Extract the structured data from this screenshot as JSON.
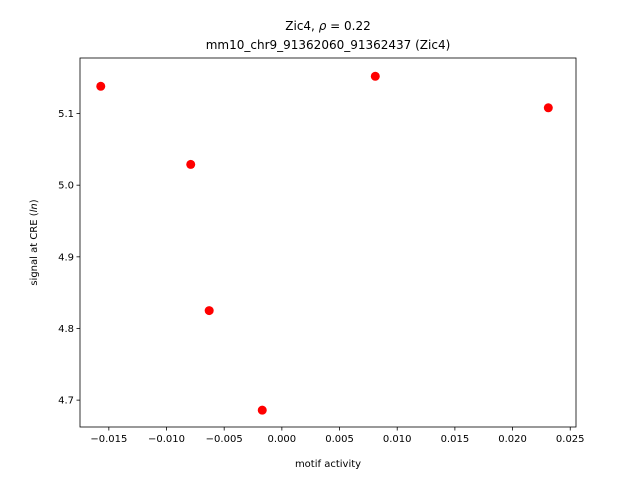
{
  "chart_data": {
    "type": "scatter",
    "title": "Zic4, ρ = 0.22",
    "subtitle": "mm10_chr9_91362060_91362437 (Zic4)",
    "xlabel": "motif activity",
    "ylabel": "signal at CRE (ln)",
    "xlim": [
      -0.0175,
      0.0255
    ],
    "ylim": [
      4.6625,
      5.1775
    ],
    "xticks": [
      -0.015,
      -0.01,
      -0.005,
      0.0,
      0.005,
      0.01,
      0.015,
      0.02,
      0.025
    ],
    "xtick_labels": [
      "−0.015",
      "−0.010",
      "−0.005",
      "0.000",
      "0.005",
      "0.010",
      "0.015",
      "0.020",
      "0.025"
    ],
    "yticks": [
      4.7,
      4.8,
      4.9,
      5.0,
      5.1
    ],
    "ytick_labels": [
      "4.7",
      "4.8",
      "4.9",
      "5.0",
      "5.1"
    ],
    "grid": false,
    "marker_color": "#ff0000",
    "points": [
      {
        "x": -0.0157,
        "y": 5.138
      },
      {
        "x": -0.0079,
        "y": 5.029
      },
      {
        "x": -0.0063,
        "y": 4.825
      },
      {
        "x": -0.0017,
        "y": 4.686
      },
      {
        "x": 0.0081,
        "y": 5.152
      },
      {
        "x": 0.0231,
        "y": 5.108
      }
    ]
  }
}
